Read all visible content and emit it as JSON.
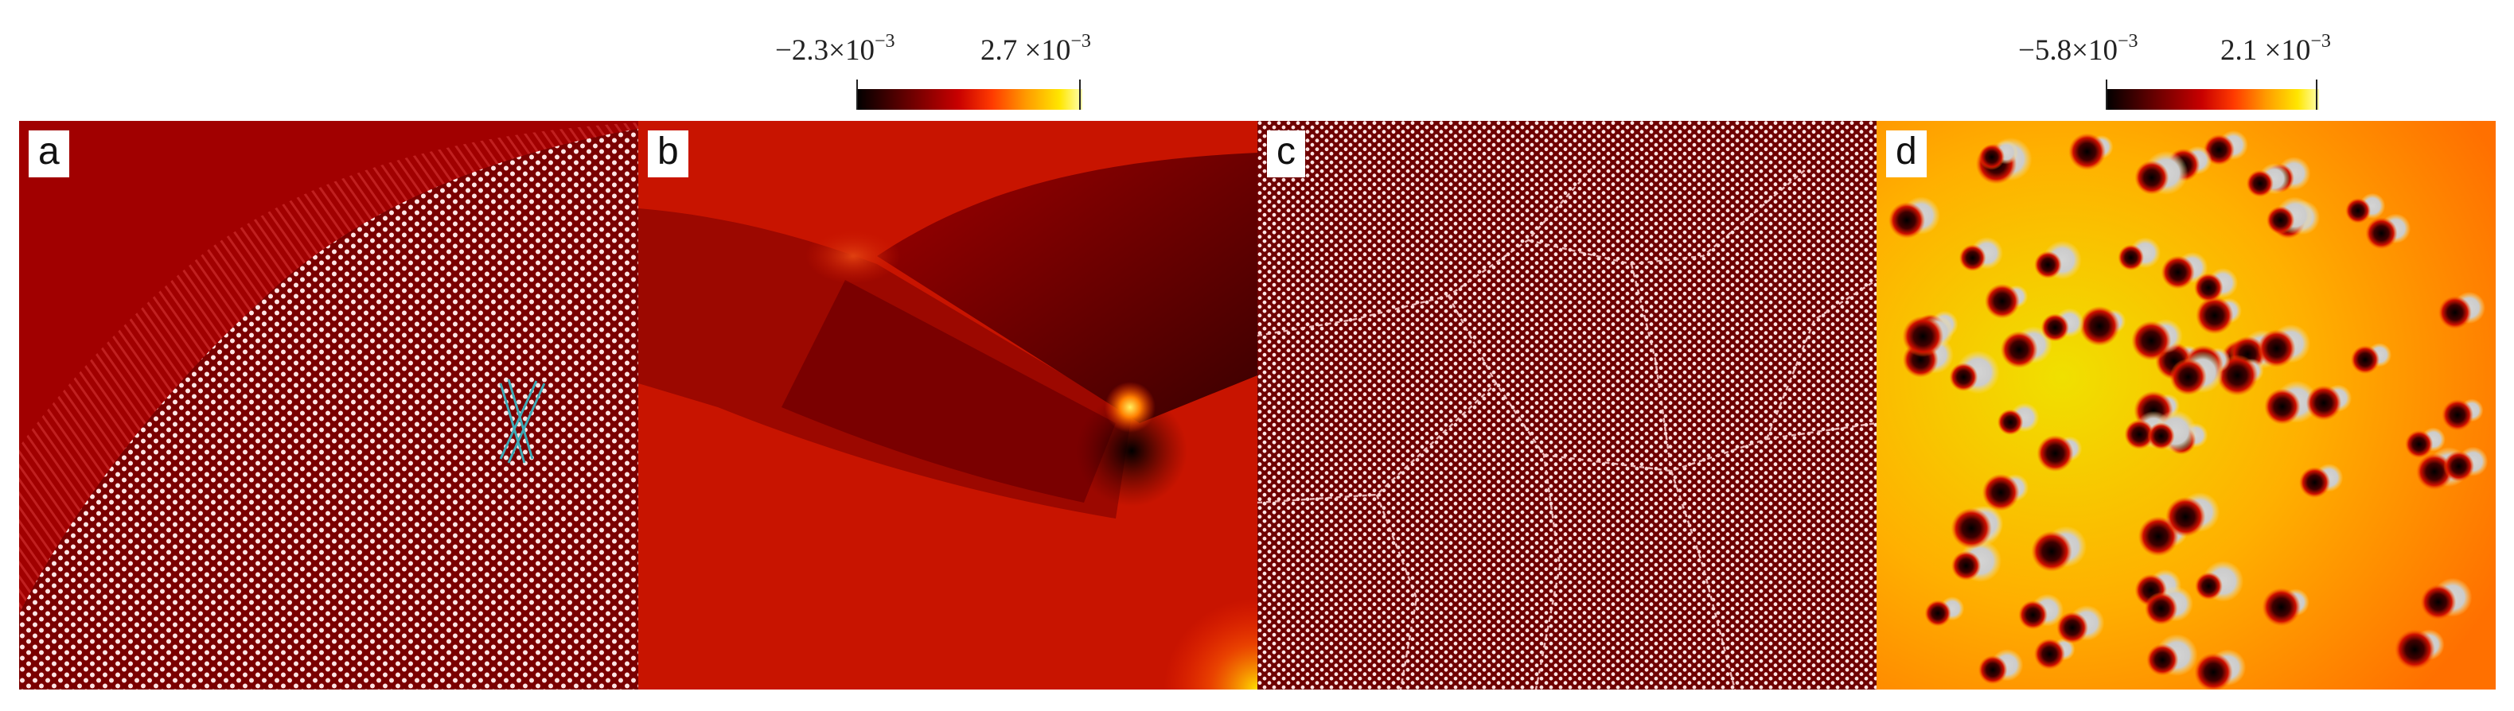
{
  "colorbars": [
    {
      "min_text": "−2.3×10",
      "min_exp": "−3",
      "max_text": "2.7 ×10",
      "max_exp": "−3"
    },
    {
      "min_text": "−5.8×10",
      "min_exp": "−3",
      "max_text": "2.1 ×10",
      "max_exp": "−3"
    }
  ],
  "panels": [
    {
      "label": "a"
    },
    {
      "label": "b"
    },
    {
      "label": "c"
    },
    {
      "label": "d"
    }
  ],
  "colors": {
    "lattice_background": "#7a0000",
    "lattice_dot": "#ffe3e3",
    "ordered_region": "#a10000",
    "dislocation_marker": "#3fa9b5",
    "field_base": "#c81400",
    "field_low": "#000000",
    "field_high": "#ffe600",
    "field_highest": "#cccccc"
  }
}
